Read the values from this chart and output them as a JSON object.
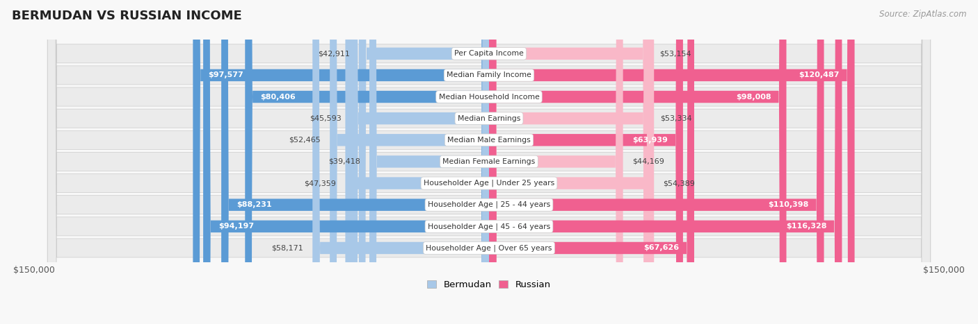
{
  "title": "BERMUDAN VS RUSSIAN INCOME",
  "source": "Source: ZipAtlas.com",
  "categories": [
    "Per Capita Income",
    "Median Family Income",
    "Median Household Income",
    "Median Earnings",
    "Median Male Earnings",
    "Median Female Earnings",
    "Householder Age | Under 25 years",
    "Householder Age | 25 - 44 years",
    "Householder Age | 45 - 64 years",
    "Householder Age | Over 65 years"
  ],
  "bermudan": [
    42911,
    97577,
    80406,
    45593,
    52465,
    39418,
    47359,
    88231,
    94197,
    58171
  ],
  "russian": [
    53154,
    120487,
    98008,
    53334,
    63939,
    44169,
    54389,
    110398,
    116328,
    67626
  ],
  "bermudan_labels": [
    "$42,911",
    "$97,577",
    "$80,406",
    "$45,593",
    "$52,465",
    "$39,418",
    "$47,359",
    "$88,231",
    "$94,197",
    "$58,171"
  ],
  "russian_labels": [
    "$53,154",
    "$120,487",
    "$98,008",
    "$53,334",
    "$63,939",
    "$44,169",
    "$54,389",
    "$110,398",
    "$116,328",
    "$67,626"
  ],
  "max_val": 150000,
  "bermudan_color_light": "#A8C8E8",
  "bermudan_color_dark": "#5B9BD5",
  "russian_color_light": "#F9B8C8",
  "russian_color_dark": "#F06090",
  "bg_row_color": "#EBEBEB",
  "fig_bg_color": "#F8F8F8",
  "label_dark_color": "#444444",
  "label_inside_color": "#FFFFFF",
  "inside_threshold_b": 60000,
  "inside_threshold_r": 60000
}
